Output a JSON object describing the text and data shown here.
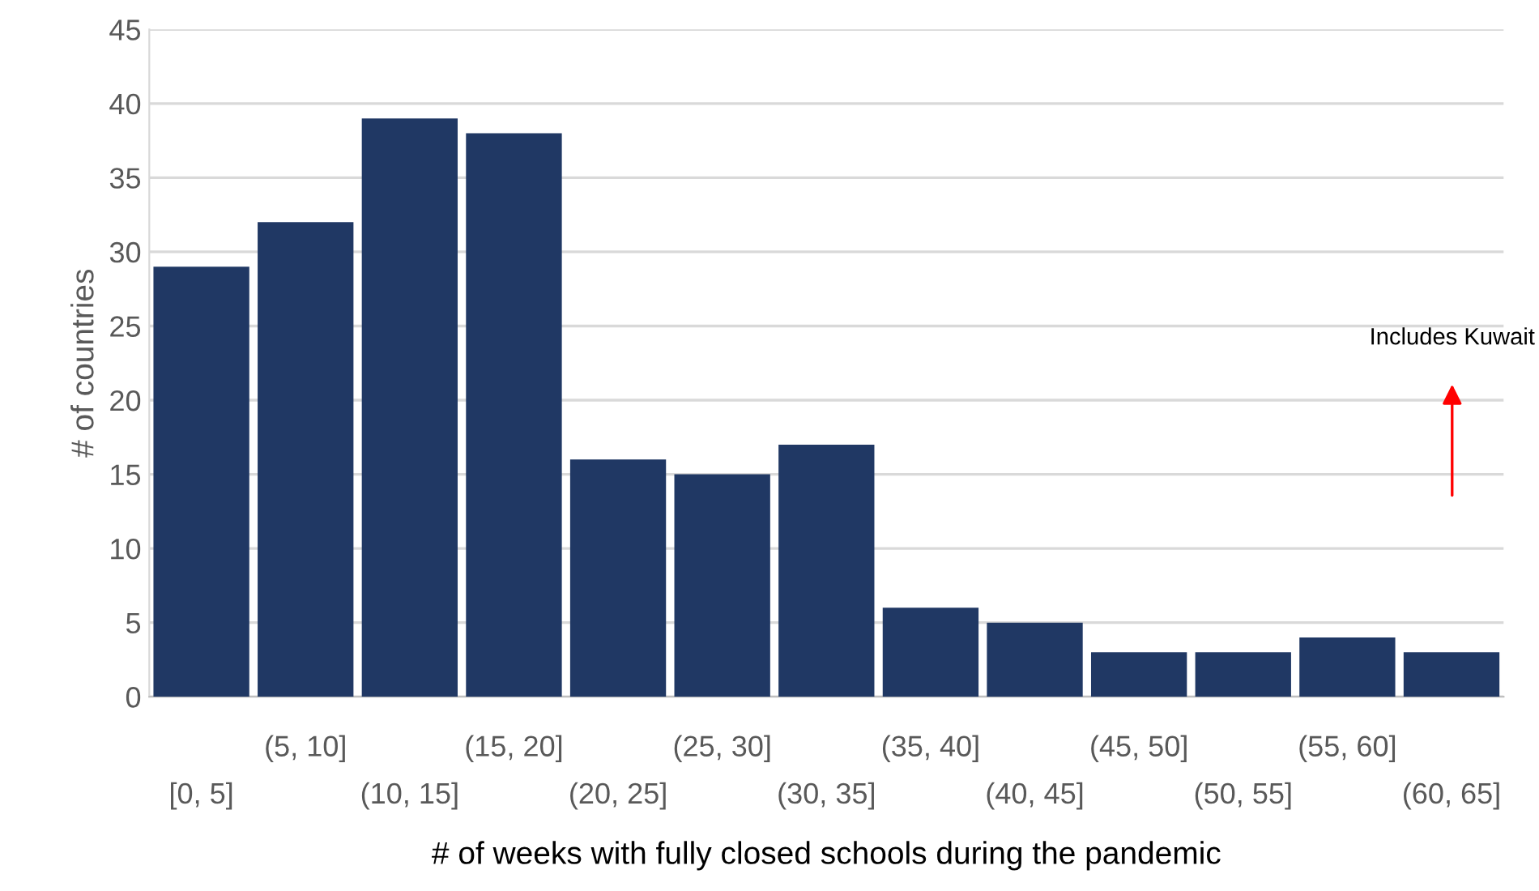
{
  "chart_data": {
    "type": "bar",
    "xlabel": "# of weeks with fully closed schools during the pandemic",
    "ylabel": "# of countries",
    "categories": [
      "[0, 5]",
      "(5, 10]",
      "(10, 15]",
      "(15, 20]",
      "(20, 25]",
      "(25, 30]",
      "(30, 35]",
      "(35, 40]",
      "(40, 45]",
      "(45, 50]",
      "(50, 55]",
      "(55, 60]",
      "(60, 65]"
    ],
    "values": [
      29,
      32,
      39,
      38,
      16,
      15,
      17,
      6,
      5,
      3,
      3,
      4,
      3
    ],
    "color": "#203864",
    "ylim": [
      0,
      45
    ],
    "yticks": [
      0,
      5,
      10,
      15,
      20,
      25,
      30,
      35,
      40,
      45
    ],
    "grid": "y",
    "legend": false,
    "annotations": [
      "Includes Kuwait"
    ]
  }
}
